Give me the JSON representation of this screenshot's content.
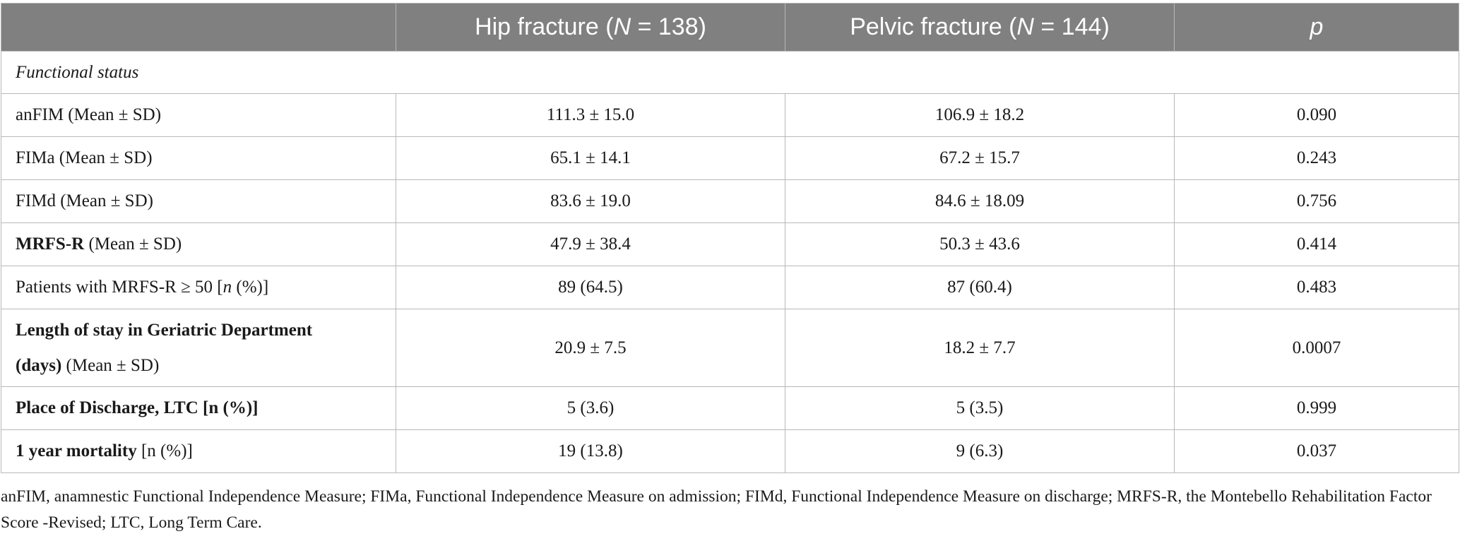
{
  "header": {
    "col1": "",
    "hip": {
      "prefix": "Hip fracture (",
      "var": "N",
      "suffix": " = 138)"
    },
    "pelvic": {
      "prefix": "Pelvic fracture (",
      "var": "N",
      "suffix": " = 144)"
    },
    "p": "p"
  },
  "section": "Functional status",
  "rows": {
    "anfim": {
      "label": "anFIM (Mean ± SD)",
      "hip": "111.3 ± 15.0",
      "pelvic": "106.9 ± 18.2",
      "p": "0.090"
    },
    "fima": {
      "label": "FIMa (Mean ± SD)",
      "hip": "65.1 ± 14.1",
      "pelvic": "67.2 ± 15.7",
      "p": "0.243"
    },
    "fimd": {
      "label": "FIMd (Mean ± SD)",
      "hip": "83.6 ± 19.0",
      "pelvic": "84.6 ± 18.09",
      "p": "0.756"
    },
    "mrfs": {
      "bold": "MRFS-R",
      "rest": " (Mean ± SD)",
      "hip": "47.9 ± 38.4",
      "pelvic": "50.3 ± 43.6",
      "p": "0.414"
    },
    "mrfs50": {
      "pre": "Patients with MRFS-R ≥ 50 [",
      "n": "n",
      "post": " (%)]",
      "hip": "89 (64.5)",
      "pelvic": "87 (60.4)",
      "p": "0.483"
    },
    "los": {
      "bold1": "Length of stay in Geriatric Department",
      "bold2": "(days)",
      "rest": " (Mean ± SD)",
      "hip": "20.9 ± 7.5",
      "pelvic": "18.2 ± 7.7",
      "p": "0.0007"
    },
    "discharge": {
      "bold": "Place of Discharge, LTC [n (%)]",
      "hip": "5 (3.6)",
      "pelvic": "5 (3.5)",
      "p": "0.999"
    },
    "mortality": {
      "bold": "1 year mortality",
      "rest": " [n (%)]",
      "hip": "19 (13.8)",
      "pelvic": "9 (6.3)",
      "p": "0.037"
    }
  },
  "footnote": "anFIM, anamnestic Functional Independence Measure; FIMa, Functional Independence Measure on admission; FIMd, Functional Independence Measure on discharge; MRFS-R, the Montebello Rehabilitation Factor Score -Revised; LTC, Long Term Care."
}
